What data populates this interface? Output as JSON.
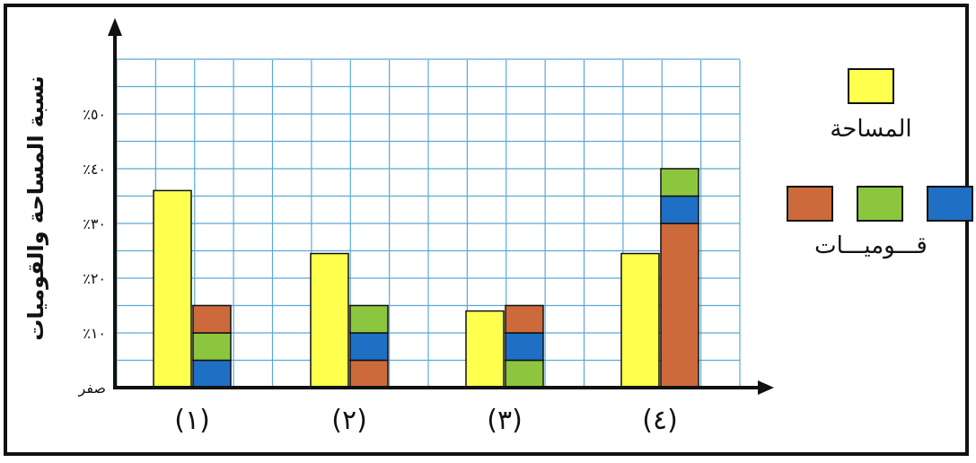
{
  "chart_data": {
    "type": "bar",
    "ylabel": "نسبة المساحة والقوميات",
    "y_ticks": [
      "صفر",
      "٪١٠",
      "٪٢٠",
      "٪٣٠",
      "٪٤٠",
      "٪٥٠"
    ],
    "y_tick_values": [
      0,
      10,
      20,
      30,
      40,
      50
    ],
    "ylim": [
      0,
      60
    ],
    "categories": [
      "(١)",
      "(٢)",
      "(٣)",
      "(٤)"
    ],
    "grid": true,
    "legend_placement": "right",
    "legend": {
      "area_label": "المساحة",
      "nationalities_label": "قـــوميـــات"
    },
    "area_series": {
      "name": "المساحة",
      "color": "#ffff4d",
      "values": [
        36,
        24.5,
        14,
        24.5
      ]
    },
    "nationality_stacks": [
      [
        {
          "color": "#1f6fc4",
          "value": 5
        },
        {
          "color": "#8cc63f",
          "value": 5
        },
        {
          "color": "#cc6a3c",
          "value": 5
        }
      ],
      [
        {
          "color": "#cc6a3c",
          "value": 5
        },
        {
          "color": "#1f6fc4",
          "value": 5
        },
        {
          "color": "#8cc63f",
          "value": 5
        }
      ],
      [
        {
          "color": "#8cc63f",
          "value": 5
        },
        {
          "color": "#1f6fc4",
          "value": 5
        },
        {
          "color": "#cc6a3c",
          "value": 5
        }
      ],
      [
        {
          "color": "#cc6a3c",
          "value": 30
        },
        {
          "color": "#1f6fc4",
          "value": 5
        },
        {
          "color": "#8cc63f",
          "value": 5
        }
      ]
    ],
    "legend_swatches": [
      "#cc6a3c",
      "#8cc63f",
      "#1f6fc4"
    ],
    "colors": {
      "grid": "#5aa8d8",
      "axis": "#111111",
      "stack_divider": "#111111"
    }
  }
}
